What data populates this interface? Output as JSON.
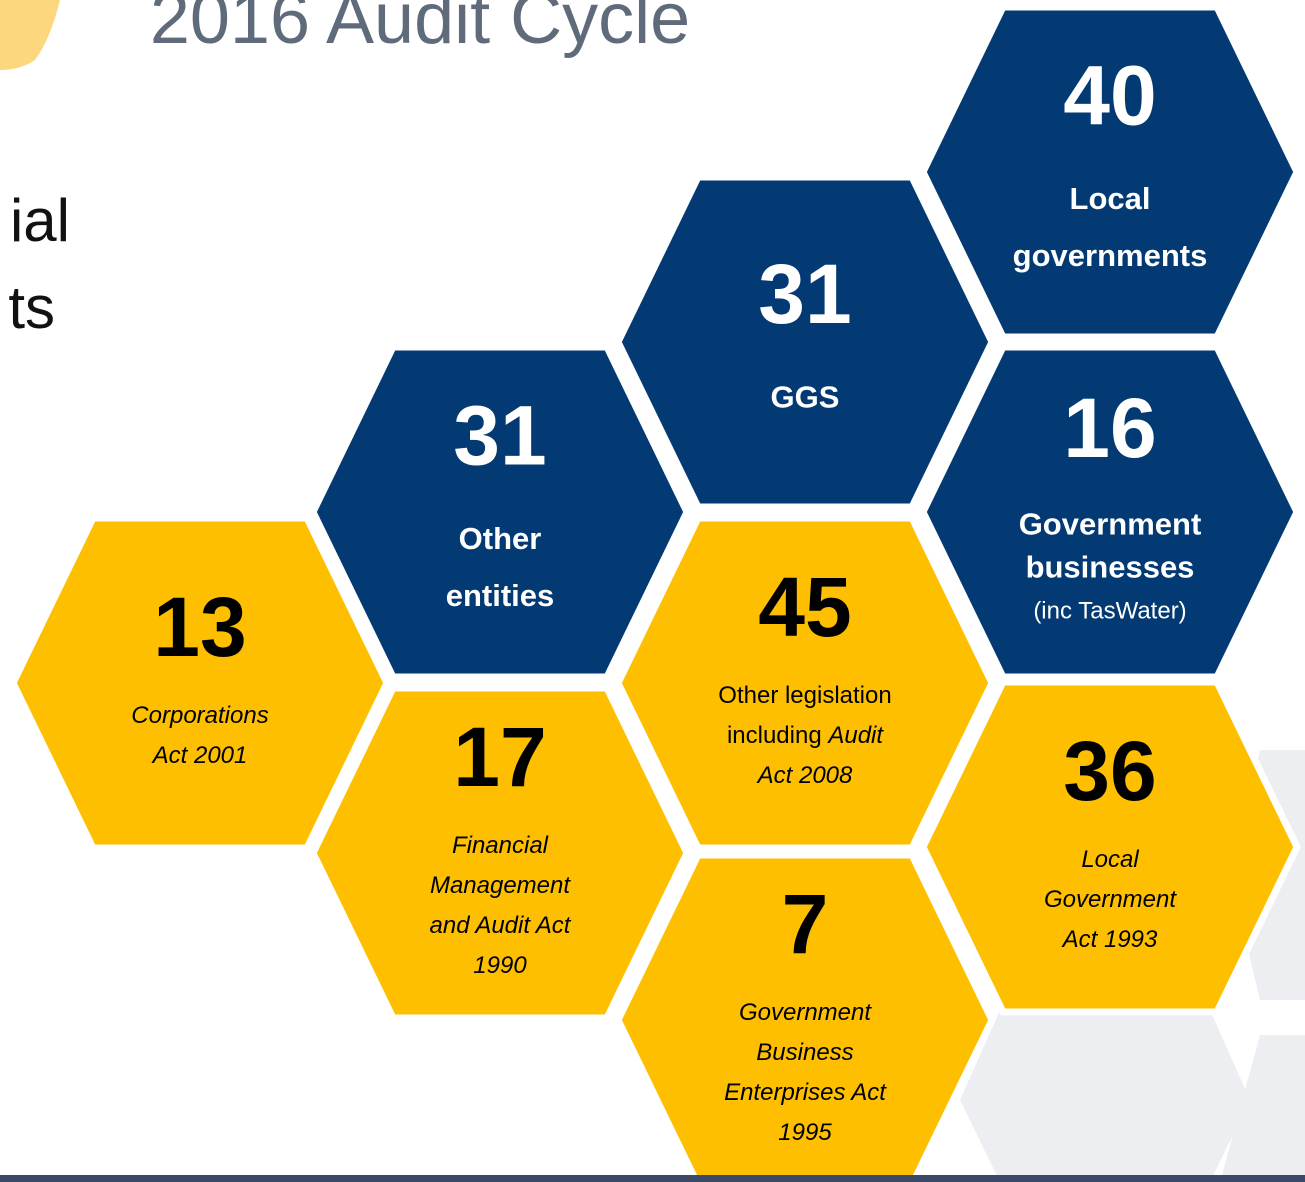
{
  "header": {
    "title": "2016 Audit Cycle"
  },
  "side_text": [
    "ial",
    "ts"
  ],
  "hexagons": [
    {
      "number": "13",
      "color": "yellow",
      "lines": [
        [
          {
            "text": "Corporations",
            "style": "italic"
          }
        ],
        [
          {
            "text": "Act 2001",
            "style": "italic"
          }
        ]
      ]
    },
    {
      "number": "31",
      "color": "navy",
      "lines": [
        [
          {
            "text": "Other",
            "style": "bold"
          }
        ],
        [
          {
            "text": "entities",
            "style": "bold"
          }
        ]
      ]
    },
    {
      "number": "17",
      "color": "yellow",
      "lines": [
        [
          {
            "text": "Financial",
            "style": "italic"
          }
        ],
        [
          {
            "text": "Management",
            "style": "italic"
          }
        ],
        [
          {
            "text": "and Audit Act",
            "style": "italic"
          }
        ],
        [
          {
            "text": "1990",
            "style": "italic"
          }
        ]
      ]
    },
    {
      "number": "31",
      "color": "navy",
      "lines": [
        [
          {
            "text": "GGS",
            "style": "bold"
          }
        ]
      ]
    },
    {
      "number": "45",
      "color": "yellow",
      "lines": [
        [
          {
            "text": "Other legislation",
            "style": "regular"
          }
        ],
        [
          {
            "text": "including ",
            "style": "regular"
          },
          {
            "text": "Audit",
            "style": "italic"
          }
        ],
        [
          {
            "text": "Act 2008",
            "style": "italic"
          }
        ]
      ]
    },
    {
      "number": "7",
      "color": "yellow",
      "lines": [
        [
          {
            "text": "Government",
            "style": "italic"
          }
        ],
        [
          {
            "text": "Business",
            "style": "italic"
          }
        ],
        [
          {
            "text": "Enterprises Act",
            "style": "italic"
          }
        ],
        [
          {
            "text": "1995",
            "style": "italic"
          }
        ]
      ]
    },
    {
      "number": "40",
      "color": "navy",
      "lines": [
        [
          {
            "text": "Local",
            "style": "bold"
          }
        ],
        [
          {
            "text": "governments",
            "style": "bold"
          }
        ]
      ]
    },
    {
      "number": "16",
      "color": "navy",
      "lines": [
        [
          {
            "text": "Government",
            "style": "bold"
          }
        ],
        [
          {
            "text": "businesses",
            "style": "bold"
          }
        ],
        [
          {
            "text": "(inc TasWater)",
            "style": "regular"
          }
        ]
      ]
    },
    {
      "number": "36",
      "color": "yellow",
      "lines": [
        [
          {
            "text": "Local",
            "style": "italic"
          }
        ],
        [
          {
            "text": "Government",
            "style": "italic"
          }
        ],
        [
          {
            "text": "Act 1993",
            "style": "italic"
          }
        ]
      ]
    }
  ]
}
